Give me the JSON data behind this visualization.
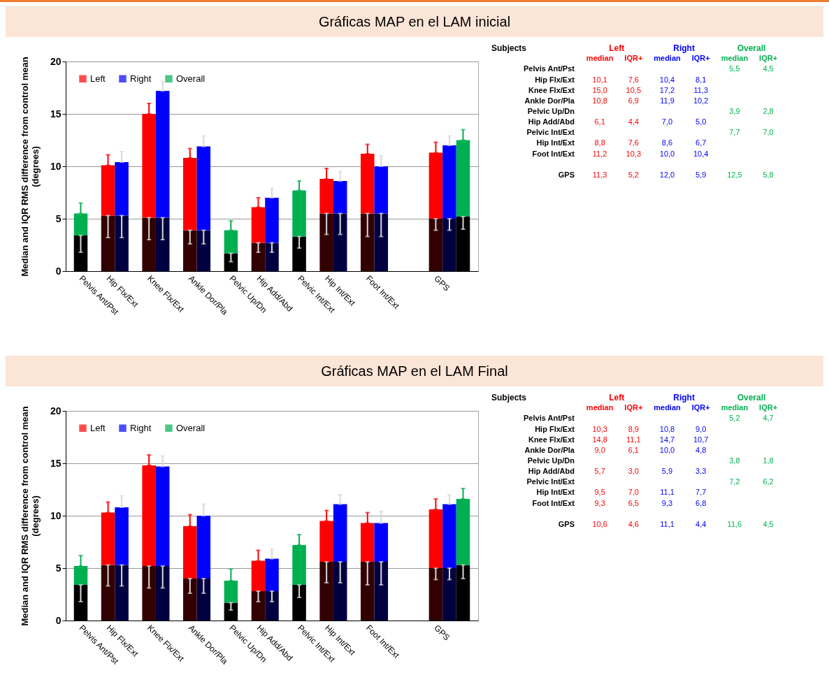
{
  "chart_data": [
    {
      "type": "bar",
      "title": "Gráficas MAP en el LAM inicial",
      "ylabel": "Median and IQR RMS difference from control mean\n(degrees)",
      "categories": [
        "Pelvis Ant/Pst",
        null,
        "Hip Flx/Ext",
        null,
        null,
        "Knee Flx/Ext",
        null,
        null,
        "Ankle Dor/Pla",
        null,
        null,
        "Pelvic Up/Dn",
        null,
        "Hip Add/Abd",
        null,
        null,
        "Pelvic Int/Ext",
        null,
        "Hip Int/Ext",
        null,
        null,
        "Foot Int/Ext",
        null,
        null,
        null,
        null,
        "GPS",
        null,
        null
      ],
      "stacked": true,
      "ylim": [
        0,
        20
      ],
      "yticks": [
        0,
        5,
        10,
        15,
        20
      ],
      "grid": "y",
      "legend": "top left",
      "series": [
        {
          "colors": [
            "#000000",
            null,
            "#330000",
            "#000040",
            null,
            "#330000",
            "#000040",
            null,
            "#330000",
            "#000040",
            null,
            "#000000",
            null,
            "#330000",
            "#000040",
            null,
            "#000000",
            null,
            "#330000",
            "#000040",
            null,
            "#330000",
            "#000040",
            null,
            null,
            null,
            "#330000",
            "#000040",
            "#000000"
          ],
          "values": [
            3.4,
            null,
            5.3,
            5.3,
            null,
            5.1,
            5.1,
            null,
            3.9,
            3.9,
            null,
            1.7,
            null,
            2.7,
            2.7,
            null,
            3.3,
            null,
            5.5,
            5.5,
            null,
            5.5,
            5.5,
            null,
            null,
            null,
            5.0,
            5.0,
            5.2
          ],
          "errors": [
            [
              1.8,
              3.4
            ],
            null,
            [
              3.2,
              5.3
            ],
            [
              3.2,
              5.3
            ],
            null,
            [
              3.0,
              5.1
            ],
            [
              3.0,
              5.1
            ],
            null,
            [
              2.6,
              3.9
            ],
            [
              2.6,
              3.9
            ],
            null,
            [
              0.9,
              1.7
            ],
            null,
            [
              1.8,
              2.7
            ],
            [
              1.8,
              2.7
            ],
            null,
            [
              2.2,
              3.3
            ],
            null,
            [
              3.5,
              5.5
            ],
            [
              3.5,
              5.5
            ],
            null,
            [
              3.3,
              5.5
            ],
            [
              3.3,
              5.5
            ],
            null,
            null,
            null,
            [
              3.9,
              5.0
            ],
            [
              3.9,
              5.0
            ],
            [
              4.0,
              5.2
            ]
          ]
        },
        {
          "name": "Left",
          "color": "#ff0000",
          "values": [
            null,
            null,
            4.8,
            null,
            null,
            9.9,
            null,
            null,
            6.9,
            null,
            null,
            null,
            null,
            3.4,
            null,
            null,
            null,
            null,
            3.3,
            null,
            null,
            5.7,
            null,
            null,
            null,
            null,
            6.3,
            null,
            null
          ],
          "errors": [
            null,
            null,
            [
              10.1,
              11.1
            ],
            null,
            null,
            [
              15.0,
              16.0
            ],
            null,
            null,
            [
              10.8,
              11.7
            ],
            null,
            null,
            null,
            null,
            [
              6.1,
              7.0
            ],
            null,
            null,
            null,
            null,
            [
              8.8,
              9.8
            ],
            null,
            null,
            [
              11.2,
              12.1
            ],
            null,
            null,
            null,
            null,
            [
              11.3,
              12.3
            ],
            null,
            null
          ]
        },
        {
          "name": "Right",
          "color": "#0000ff",
          "values": [
            null,
            null,
            null,
            5.1,
            null,
            null,
            12.1,
            null,
            null,
            8.0,
            null,
            null,
            null,
            null,
            4.3,
            null,
            null,
            null,
            null,
            3.1,
            null,
            null,
            4.5,
            null,
            null,
            null,
            null,
            7.0,
            null
          ],
          "errors": [
            null,
            null,
            null,
            [
              10.4,
              11.4
            ],
            null,
            null,
            [
              17.2,
              18.1
            ],
            null,
            null,
            [
              11.9,
              12.9
            ],
            null,
            null,
            null,
            null,
            [
              7.0,
              7.9
            ],
            null,
            null,
            null,
            null,
            [
              8.6,
              9.5
            ],
            null,
            null,
            [
              10.0,
              11.0
            ],
            null,
            null,
            null,
            null,
            [
              12.0,
              12.9
            ],
            null
          ]
        },
        {
          "name": "Overall",
          "color": "#00b050",
          "values": [
            2.1,
            null,
            null,
            null,
            null,
            null,
            null,
            null,
            null,
            null,
            null,
            2.2,
            null,
            null,
            null,
            null,
            4.4,
            null,
            null,
            null,
            null,
            null,
            null,
            null,
            null,
            null,
            null,
            null,
            7.3
          ],
          "errors": [
            [
              5.5,
              6.5
            ],
            null,
            null,
            null,
            null,
            null,
            null,
            null,
            null,
            null,
            null,
            [
              3.9,
              4.8
            ],
            null,
            null,
            null,
            null,
            [
              7.7,
              8.6
            ],
            null,
            null,
            null,
            null,
            null,
            null,
            null,
            null,
            null,
            null,
            null,
            [
              12.5,
              13.5
            ]
          ]
        }
      ]
    },
    {
      "type": "other",
      "ylabel": "Subjects",
      "annotations": [
        "Left",
        "Right",
        "Overall"
      ],
      "categories": [
        "Pelvis Ant/Pst",
        "Hip Flx/Ext",
        "Knee Flx/Ext",
        "Ankle Dor/Pla",
        "Pelvic Up/Dn",
        "Hip Add/Abd",
        "Pelvic Int/Ext",
        "Hip Int/Ext",
        "Foot Int/Ext",
        null,
        "GPS"
      ],
      "series": [
        {
          "name": "median",
          "color": "#ff0000",
          "values": [
            null,
            10.1,
            15.0,
            10.8,
            null,
            6.1,
            null,
            8.8,
            11.2,
            null,
            11.3
          ],
          "value_labels": [
            null,
            "10,1",
            "15,0",
            "10,8",
            null,
            "6,1",
            null,
            "8,8",
            "11,2",
            null,
            "11,3"
          ]
        },
        {
          "name": "IQR+",
          "color": "#ff0000",
          "values": [
            null,
            7.6,
            10.5,
            6.9,
            null,
            4.4,
            null,
            7.6,
            10.3,
            null,
            5.2
          ],
          "value_labels": [
            null,
            "7,6",
            "10,5",
            "6,9",
            null,
            "4,4",
            null,
            "7,6",
            "10,3",
            null,
            "5,2"
          ]
        },
        {
          "name": "median",
          "color": "#0000ff",
          "values": [
            null,
            10.4,
            17.2,
            11.9,
            null,
            7.0,
            null,
            8.6,
            10.0,
            null,
            12.0
          ],
          "value_labels": [
            null,
            "10,4",
            "17,2",
            "11,9",
            null,
            "7,0",
            null,
            "8,6",
            "10,0",
            null,
            "12,0"
          ]
        },
        {
          "name": "IQR+",
          "color": "#0000ff",
          "values": [
            null,
            8.1,
            11.3,
            10.2,
            null,
            5.0,
            null,
            6.7,
            10.4,
            null,
            5.9
          ],
          "value_labels": [
            null,
            "8,1",
            "11,3",
            "10,2",
            null,
            "5,0",
            null,
            "6,7",
            "10,4",
            null,
            "5,9"
          ]
        },
        {
          "name": "median",
          "color": "#00b050",
          "values": [
            5.5,
            null,
            null,
            null,
            3.9,
            null,
            7.7,
            null,
            null,
            null,
            12.5
          ],
          "value_labels": [
            "5,5",
            null,
            null,
            null,
            "3,9",
            null,
            "7,7",
            null,
            null,
            null,
            "12,5"
          ]
        },
        {
          "name": "IQR+",
          "color": "#00b050",
          "values": [
            4.5,
            null,
            null,
            null,
            2.8,
            null,
            7.0,
            null,
            null,
            null,
            5.8
          ],
          "value_labels": [
            "4,5",
            null,
            null,
            null,
            "2,8",
            null,
            "7,0",
            null,
            null,
            null,
            "5,8"
          ]
        }
      ]
    },
    {
      "type": "bar",
      "title": "Gráficas MAP en el LAM Final",
      "ylabel": "Median and IQR RMS difference from control mean\n(degrees)",
      "categories": [
        "Pelvis Ant/Pst",
        null,
        "Hip Flx/Ext",
        null,
        null,
        "Knee Flx/Ext",
        null,
        null,
        "Ankle Dor/Pla",
        null,
        null,
        "Pelvic Up/Dn",
        null,
        "Hip Add/Abd",
        null,
        null,
        "Pelvic Int/Ext",
        null,
        "Hip Int/Ext",
        null,
        null,
        "Foot Int/Ext",
        null,
        null,
        null,
        null,
        "GPS",
        null,
        null
      ],
      "stacked": true,
      "ylim": [
        0,
        20
      ],
      "yticks": [
        0,
        5,
        10,
        15,
        20
      ],
      "grid": "y",
      "legend": "top left",
      "series": [
        {
          "colors": [
            "#000000",
            null,
            "#330000",
            "#000040",
            null,
            "#330000",
            "#000040",
            null,
            "#330000",
            "#000040",
            null,
            "#000000",
            null,
            "#330000",
            "#000040",
            null,
            "#000000",
            null,
            "#330000",
            "#000040",
            null,
            "#330000",
            "#000040",
            null,
            null,
            null,
            "#330000",
            "#000040",
            "#000000"
          ],
          "values": [
            3.4,
            null,
            5.3,
            5.3,
            null,
            5.2,
            5.2,
            null,
            4.0,
            4.0,
            null,
            1.7,
            null,
            2.8,
            2.8,
            null,
            3.4,
            null,
            5.6,
            5.6,
            null,
            5.6,
            5.6,
            null,
            null,
            null,
            5.0,
            5.0,
            5.3
          ],
          "errors": [
            [
              1.8,
              3.4
            ],
            null,
            [
              3.3,
              5.3
            ],
            [
              3.3,
              5.3
            ],
            null,
            [
              3.1,
              5.2
            ],
            [
              3.1,
              5.2
            ],
            null,
            [
              2.6,
              4.0
            ],
            [
              2.6,
              4.0
            ],
            null,
            [
              1.0,
              1.7
            ],
            null,
            [
              1.8,
              2.8
            ],
            [
              1.8,
              2.8
            ],
            null,
            [
              2.2,
              3.4
            ],
            null,
            [
              3.6,
              5.6
            ],
            [
              3.6,
              5.6
            ],
            null,
            [
              3.4,
              5.6
            ],
            [
              3.4,
              5.6
            ],
            null,
            null,
            null,
            [
              3.9,
              5.0
            ],
            [
              3.9,
              5.0
            ],
            [
              4.0,
              5.3
            ]
          ]
        },
        {
          "name": "Left",
          "color": "#ff0000",
          "values": [
            null,
            null,
            5.0,
            null,
            null,
            9.6,
            null,
            null,
            5.0,
            null,
            null,
            null,
            null,
            2.9,
            null,
            null,
            null,
            null,
            3.9,
            null,
            null,
            3.7,
            null,
            null,
            null,
            null,
            5.6,
            null,
            null
          ],
          "errors": [
            null,
            null,
            [
              10.3,
              11.3
            ],
            null,
            null,
            [
              14.8,
              15.8
            ],
            null,
            null,
            [
              9.0,
              10.1
            ],
            null,
            null,
            null,
            null,
            [
              5.7,
              6.7
            ],
            null,
            null,
            null,
            null,
            [
              9.5,
              10.5
            ],
            null,
            null,
            [
              9.3,
              10.3
            ],
            null,
            null,
            null,
            null,
            [
              10.6,
              11.6
            ],
            null,
            null
          ]
        },
        {
          "name": "Right",
          "color": "#0000ff",
          "values": [
            null,
            null,
            null,
            5.5,
            null,
            null,
            9.5,
            null,
            null,
            6.0,
            null,
            null,
            null,
            null,
            3.1,
            null,
            null,
            null,
            null,
            5.5,
            null,
            null,
            3.7,
            null,
            null,
            null,
            null,
            6.1,
            null
          ],
          "errors": [
            null,
            null,
            null,
            [
              10.8,
              11.9
            ],
            null,
            null,
            [
              14.7,
              15.7
            ],
            null,
            null,
            [
              10.0,
              11.1
            ],
            null,
            null,
            null,
            null,
            [
              5.9,
              6.8
            ],
            null,
            null,
            null,
            null,
            [
              11.1,
              12.0
            ],
            null,
            null,
            [
              9.3,
              10.4
            ],
            null,
            null,
            null,
            null,
            [
              11.1,
              12.0
            ],
            null
          ]
        },
        {
          "name": "Overall",
          "color": "#00b050",
          "values": [
            1.8,
            null,
            null,
            null,
            null,
            null,
            null,
            null,
            null,
            null,
            null,
            2.1,
            null,
            null,
            null,
            null,
            3.8,
            null,
            null,
            null,
            null,
            null,
            null,
            null,
            null,
            null,
            null,
            null,
            6.3
          ],
          "errors": [
            [
              5.2,
              6.2
            ],
            null,
            null,
            null,
            null,
            null,
            null,
            null,
            null,
            null,
            null,
            [
              3.8,
              4.9
            ],
            null,
            null,
            null,
            null,
            [
              7.2,
              8.2
            ],
            null,
            null,
            null,
            null,
            null,
            null,
            null,
            null,
            null,
            null,
            null,
            [
              11.6,
              12.6
            ]
          ]
        }
      ]
    },
    {
      "type": "other",
      "ylabel": "Subjects",
      "annotations": [
        "Left",
        "Right",
        "Overall"
      ],
      "categories": [
        "Pelvis Ant/Pst",
        "Hip Flx/Ext",
        "Knee Flx/Ext",
        "Ankle Dor/Pla",
        "Pelvic Up/Dn",
        "Hip Add/Abd",
        "Pelvic Int/Ext",
        "Hip Int/Ext",
        "Foot Int/Ext",
        null,
        "GPS"
      ],
      "series": [
        {
          "name": "median",
          "color": "#ff0000",
          "values": [
            null,
            10.3,
            14.8,
            9.0,
            null,
            5.7,
            null,
            9.5,
            9.3,
            null,
            10.6
          ],
          "value_labels": [
            null,
            "10,3",
            "14,8",
            "9,0",
            null,
            "5,7",
            null,
            "9,5",
            "9,3",
            null,
            "10,6"
          ]
        },
        {
          "name": "IQR+",
          "color": "#ff0000",
          "values": [
            null,
            8.9,
            11.1,
            6.1,
            null,
            3.0,
            null,
            7.0,
            6.5,
            null,
            4.6
          ],
          "value_labels": [
            null,
            "8,9",
            "11,1",
            "6,1",
            null,
            "3,0",
            null,
            "7,0",
            "6,5",
            null,
            "4,6"
          ]
        },
        {
          "name": "median",
          "color": "#0000ff",
          "values": [
            null,
            10.8,
            14.7,
            10.0,
            null,
            5.9,
            null,
            11.1,
            9.3,
            null,
            11.1
          ],
          "value_labels": [
            null,
            "10,8",
            "14,7",
            "10,0",
            null,
            "5,9",
            null,
            "11,1",
            "9,3",
            null,
            "11,1"
          ]
        },
        {
          "name": "IQR+",
          "color": "#0000ff",
          "values": [
            null,
            9.0,
            10.7,
            4.8,
            null,
            3.3,
            null,
            7.7,
            6.8,
            null,
            4.4
          ],
          "value_labels": [
            null,
            "9,0",
            "10,7",
            "4,8",
            null,
            "3,3",
            null,
            "7,7",
            "6,8",
            null,
            "4,4"
          ]
        },
        {
          "name": "median",
          "color": "#00b050",
          "values": [
            5.2,
            null,
            null,
            null,
            3.8,
            null,
            7.2,
            null,
            null,
            null,
            11.6
          ],
          "value_labels": [
            "5,2",
            null,
            null,
            null,
            "3,8",
            null,
            "7,2",
            null,
            null,
            null,
            "11,6"
          ]
        },
        {
          "name": "IQR+",
          "color": "#00b050",
          "values": [
            4.7,
            null,
            null,
            null,
            1.8,
            null,
            6.2,
            null,
            null,
            null,
            4.5
          ],
          "value_labels": [
            "4,7",
            null,
            null,
            null,
            "1,8",
            null,
            "6,2",
            null,
            null,
            null,
            "4,5"
          ]
        }
      ]
    }
  ]
}
